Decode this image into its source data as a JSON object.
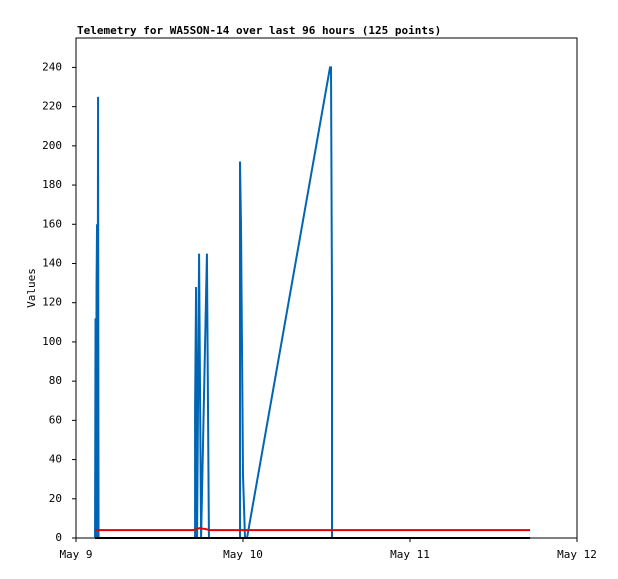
{
  "chart_data": {
    "type": "line",
    "title": "Telemetry for WA5SON-14 over last 96 hours (125 points)",
    "y_label": "Values",
    "xlim": [
      0,
      3
    ],
    "ylim": [
      0,
      255
    ],
    "xticks": [
      {
        "value": 0,
        "label": "May 9"
      },
      {
        "value": 1,
        "label": "May 10"
      },
      {
        "value": 2,
        "label": "May 11"
      },
      {
        "value": 3,
        "label": "May 12"
      }
    ],
    "yticks": [
      0,
      20,
      40,
      60,
      80,
      100,
      120,
      140,
      160,
      180,
      200,
      220,
      240
    ],
    "series": [
      {
        "color": "#0066b3",
        "x": [
          0.114,
          0.117,
          0.12,
          0.123,
          0.126,
          0.129,
          0.132,
          0.135,
          0.713,
          0.713,
          0.719,
          0.725,
          0.737,
          0.743,
          0.749,
          0.784,
          0.79,
          0.796,
          0.982,
          0.982,
          0.988,
          0.994,
          1.0,
          1.012,
          1.024,
          1.521,
          1.527,
          1.533,
          1.533
        ],
        "values": [
          0,
          112,
          0,
          128,
          160,
          0,
          225,
          0,
          0,
          65,
          128,
          0,
          145,
          72,
          0,
          145,
          72,
          0,
          0,
          192,
          160,
          97,
          32,
          0,
          0,
          240,
          240,
          120,
          0
        ]
      },
      {
        "color": "#e00000",
        "x": [
          0.114,
          0.7,
          0.74,
          0.78,
          0.8,
          2.719
        ],
        "values": [
          4,
          4,
          5,
          4.5,
          4,
          4
        ]
      },
      {
        "color": "#000000",
        "x": [
          0.114,
          2.719
        ],
        "values": [
          0,
          0
        ]
      }
    ]
  }
}
